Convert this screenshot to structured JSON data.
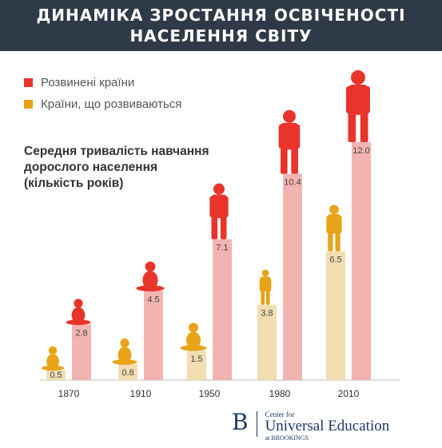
{
  "banner": {
    "line1": "ДИНАМІКА ЗРОСТАННЯ ОСВІЧЕНОСТІ",
    "line2": "НАСЕЛЕННЯ СВІТУ"
  },
  "subtitle_lines": [
    "Середня тривалість навчання",
    "дорослого населення",
    "(кількість років)"
  ],
  "colors": {
    "developed": "#e8342a",
    "developing": "#e8a317",
    "developed_bar": "#f2b4b0",
    "developing_bar": "#f2ddb0"
  },
  "chart_data": {
    "type": "bar",
    "categories": [
      "1870",
      "1910",
      "1950",
      "1980",
      "2010"
    ],
    "series": [
      {
        "name": "Розвинені країни",
        "values": [
          2.8,
          4.5,
          7.1,
          10.4,
          12.0
        ],
        "labels": [
          "2.8",
          "4.5",
          "7.1",
          "10.4",
          "12.0"
        ]
      },
      {
        "name": "Країни, що розвиваються",
        "values": [
          0.5,
          0.8,
          1.5,
          3.8,
          6.5
        ],
        "labels": [
          "0.5",
          "0.8",
          "1.5",
          "3.8",
          "6.5"
        ]
      }
    ],
    "ylim": [
      0,
      12
    ],
    "grid": false,
    "legend": "top-left"
  },
  "brand": {
    "letter": "B",
    "line1": "Center for",
    "line2": "Universal Education",
    "line3": "at BROOKINGS"
  }
}
